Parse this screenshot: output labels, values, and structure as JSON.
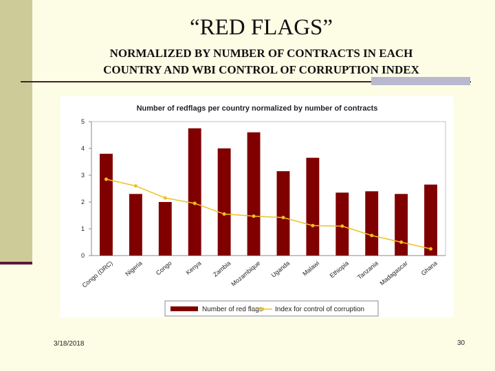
{
  "slide": {
    "title": "“RED FLAGS”",
    "subtitle_line1": "NORMALIZED BY NUMBER OF CONTRACTS IN EACH",
    "subtitle_line2": "COUNTRY AND WBI CONTROL OF CORRUPTION INDEX",
    "date": "3/18/2018",
    "page_number": "30"
  },
  "colors": {
    "bar": "#800000",
    "line": "#f0c020",
    "axis": "#888888",
    "grid": "#c0c0c0"
  },
  "chart_data": {
    "type": "bar",
    "title": "Number of redflags per country normalized by number of contracts",
    "xlabel": "",
    "ylabel": "",
    "ylim": [
      0,
      5
    ],
    "yticks": [
      "0",
      "1",
      "2",
      "3",
      "4",
      "5"
    ],
    "grid": false,
    "legend_position": "bottom",
    "categories": [
      "Congo (DRC)",
      "Nigeria",
      "Congo",
      "Kenya",
      "Zambia",
      "Mozambique",
      "Uganda",
      "Malawi",
      "Ethiopia",
      "Tanzania",
      "Madagascar",
      "Ghana"
    ],
    "series": [
      {
        "name": "Number of red flags",
        "type": "bar",
        "values": [
          3.8,
          2.3,
          2.0,
          4.75,
          4.0,
          4.6,
          3.15,
          3.65,
          2.35,
          2.4,
          2.3,
          2.65
        ]
      },
      {
        "name": "Index for control of corruption",
        "type": "line",
        "values": [
          2.85,
          2.6,
          2.15,
          1.95,
          1.55,
          1.47,
          1.42,
          1.12,
          1.1,
          0.75,
          0.5,
          0.25
        ]
      }
    ]
  }
}
